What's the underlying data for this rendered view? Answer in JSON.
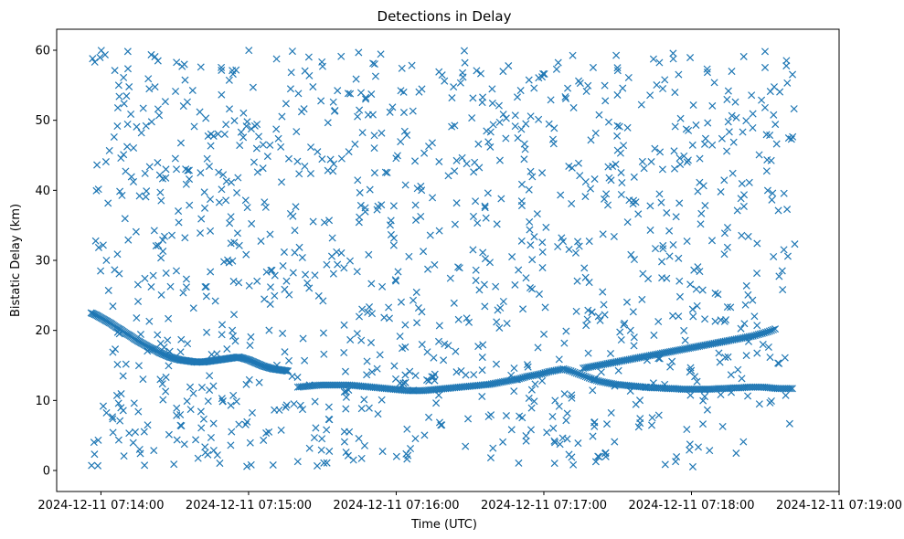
{
  "chart_data": {
    "type": "scatter",
    "title": "Detections in Delay",
    "xlabel": "Time (UTC)",
    "ylabel": "Bistatic Delay (km)",
    "x_unit": "seconds after 2024-12-11 07:14:00",
    "xlim": [
      -18,
      300
    ],
    "ylim": [
      -3,
      63
    ],
    "x_ticks": [
      {
        "value": 0,
        "label": "2024-12-11 07:14:00"
      },
      {
        "value": 60,
        "label": "2024-12-11 07:15:00"
      },
      {
        "value": 120,
        "label": "2024-12-11 07:16:00"
      },
      {
        "value": 180,
        "label": "2024-12-11 07:17:00"
      },
      {
        "value": 240,
        "label": "2024-12-11 07:18:00"
      },
      {
        "value": 300,
        "label": "2024-12-11 07:19:00"
      }
    ],
    "y_ticks": [
      0,
      10,
      20,
      30,
      40,
      50,
      60
    ],
    "marker": "x",
    "color": "#1f77b4",
    "clutter": {
      "x_range": [
        -4,
        282
      ],
      "y_range": [
        0.5,
        60
      ],
      "count": 1150,
      "seed": 20241211
    },
    "tracks": [
      {
        "name": "track-1",
        "x": [
          -4,
          -2,
          0,
          2,
          4,
          6,
          8,
          10,
          12,
          14,
          16,
          18,
          20,
          22,
          24,
          26,
          28,
          30,
          32,
          34,
          36,
          38,
          40,
          42,
          44,
          46,
          48,
          50,
          52,
          54,
          56,
          58,
          60,
          62,
          64,
          66,
          68,
          70,
          72,
          74,
          76
        ],
        "y": [
          22.5,
          22.2,
          21.8,
          21.4,
          21.0,
          20.5,
          20.1,
          19.6,
          19.2,
          18.7,
          18.3,
          17.9,
          17.5,
          17.2,
          16.8,
          16.5,
          16.2,
          16.0,
          15.8,
          15.7,
          15.6,
          15.5,
          15.5,
          15.5,
          15.6,
          15.7,
          15.8,
          15.9,
          16.0,
          16.1,
          16.2,
          16.0,
          15.8,
          15.5,
          15.2,
          14.9,
          14.7,
          14.5,
          14.4,
          14.3,
          14.2
        ]
      },
      {
        "name": "track-2",
        "x": [
          80,
          83,
          86,
          89,
          92,
          95,
          98,
          101,
          104,
          107,
          110,
          113,
          116,
          119,
          122,
          125,
          128,
          131,
          134,
          137,
          140,
          143,
          146,
          149,
          152,
          155,
          158,
          161,
          164,
          167,
          170,
          173,
          176,
          179,
          182,
          185,
          188,
          191,
          194,
          197,
          200,
          203,
          206,
          209,
          212,
          215,
          218,
          221,
          224,
          227,
          230,
          233,
          236,
          239,
          242,
          245,
          248,
          251,
          254,
          257,
          260,
          263,
          266,
          269,
          272,
          275,
          278,
          281
        ],
        "y": [
          11.9,
          12.0,
          12.1,
          12.2,
          12.2,
          12.2,
          12.2,
          12.2,
          12.1,
          12.0,
          11.9,
          11.8,
          11.7,
          11.6,
          11.5,
          11.4,
          11.4,
          11.4,
          11.5,
          11.6,
          11.7,
          11.8,
          11.9,
          12.0,
          12.1,
          12.2,
          12.3,
          12.5,
          12.7,
          12.9,
          13.1,
          13.4,
          13.6,
          13.8,
          14.1,
          14.3,
          14.5,
          14.2,
          13.8,
          13.4,
          13.0,
          12.7,
          12.5,
          12.3,
          12.2,
          12.1,
          12.0,
          11.9,
          11.8,
          11.8,
          11.7,
          11.7,
          11.6,
          11.6,
          11.6,
          11.6,
          11.6,
          11.7,
          11.7,
          11.8,
          11.8,
          11.9,
          11.9,
          11.9,
          11.8,
          11.7,
          11.7,
          11.7
        ]
      },
      {
        "name": "track-3",
        "x": [
          196,
          199,
          202,
          205,
          208,
          211,
          214,
          217,
          220,
          223,
          226,
          229,
          232,
          235,
          238,
          241,
          244,
          247,
          250,
          253,
          256,
          259,
          262,
          265,
          268,
          271,
          274
        ],
        "y": [
          14.6,
          14.8,
          15.0,
          15.2,
          15.4,
          15.6,
          15.8,
          16.0,
          16.2,
          16.4,
          16.6,
          16.8,
          17.0,
          17.2,
          17.4,
          17.6,
          17.8,
          18.0,
          18.2,
          18.4,
          18.6,
          18.8,
          19.0,
          19.2,
          19.5,
          19.8,
          20.2
        ]
      }
    ]
  }
}
